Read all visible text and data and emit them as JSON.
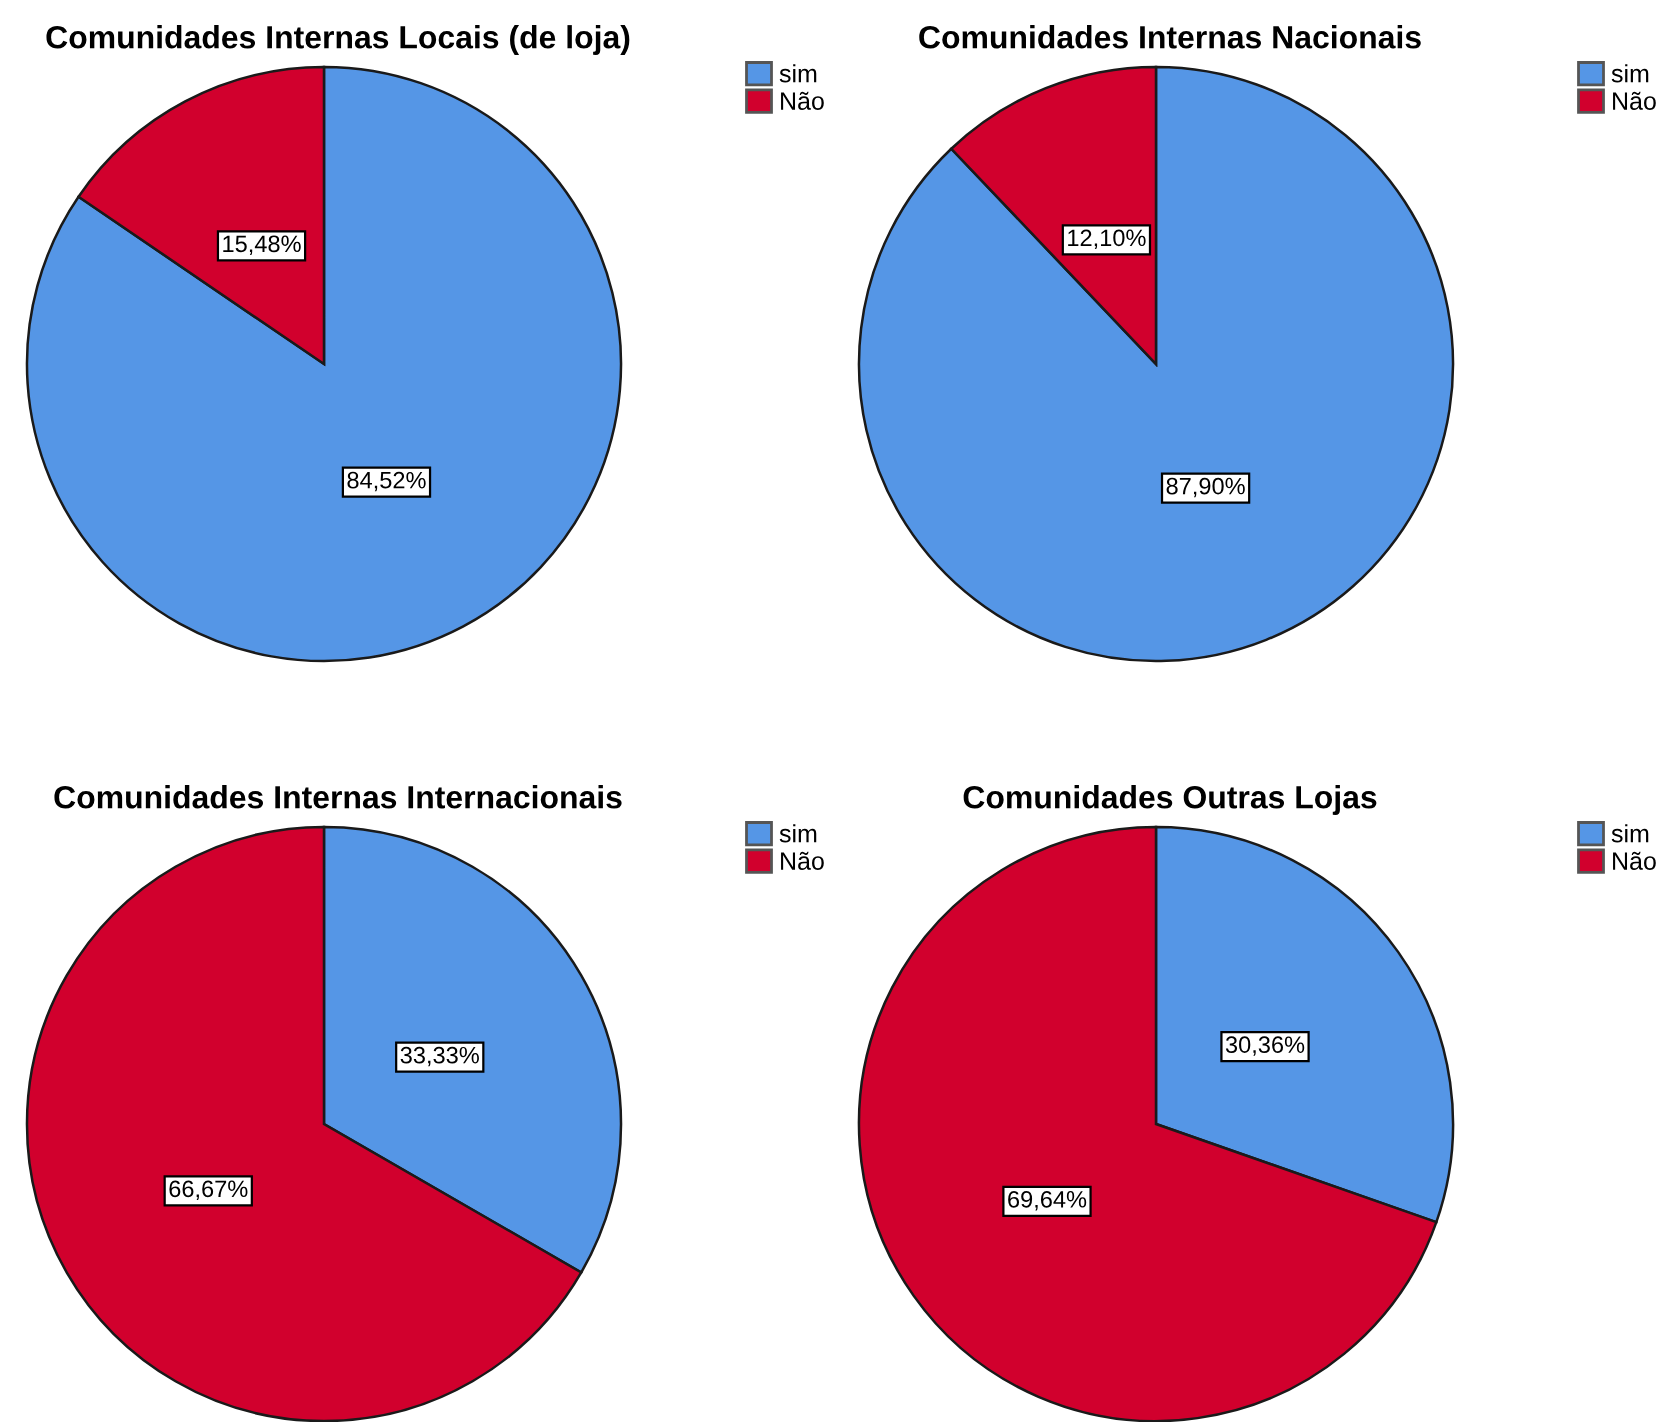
{
  "chart_data": [
    {
      "type": "pie",
      "title": "Comunidades Internas Locais (de loja)",
      "categories": [
        "sim",
        "Não"
      ],
      "values": [
        84.52,
        15.48
      ],
      "value_labels": [
        "84,52%",
        "15,48%"
      ],
      "colors": [
        "#5596e6",
        "#d1002d"
      ],
      "legend": "top right"
    },
    {
      "type": "pie",
      "title": "Comunidades Internas Nacionais",
      "categories": [
        "sim",
        "Não"
      ],
      "values": [
        87.9,
        12.1
      ],
      "value_labels": [
        "87,90%",
        "12,10%"
      ],
      "colors": [
        "#5596e6",
        "#d1002d"
      ],
      "legend": "top right"
    },
    {
      "type": "pie",
      "title": "Comunidades Internas Internacionais",
      "categories": [
        "sim",
        "Não"
      ],
      "values": [
        33.33,
        66.67
      ],
      "value_labels": [
        "33,33%",
        "66,67%"
      ],
      "colors": [
        "#5596e6",
        "#d1002d"
      ],
      "legend": "top right"
    },
    {
      "type": "pie",
      "title": "Comunidades Outras Lojas",
      "categories": [
        "sim",
        "Não"
      ],
      "values": [
        30.36,
        69.64
      ],
      "value_labels": [
        "30,36%",
        "69,64%"
      ],
      "colors": [
        "#5596e6",
        "#d1002d"
      ],
      "legend": "top right"
    }
  ]
}
